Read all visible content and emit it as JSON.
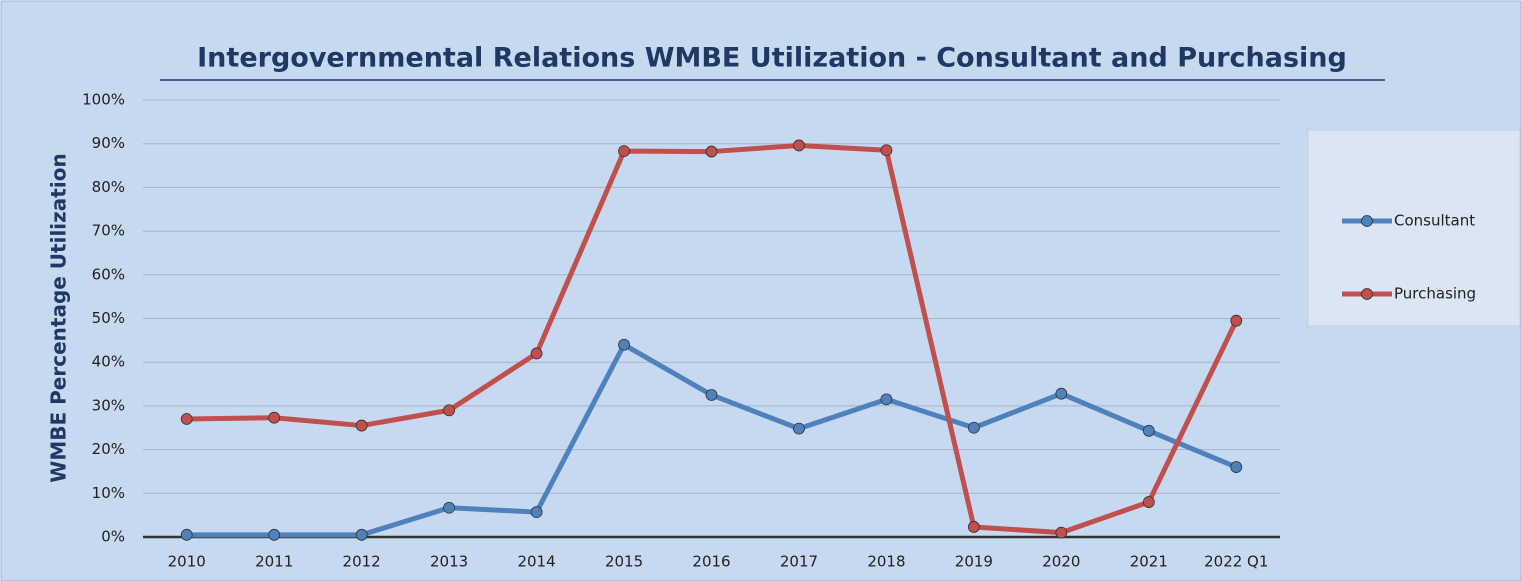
{
  "chart_data": {
    "type": "line",
    "title": "Intergovernmental Relations WMBE Utilization - Consultant and Purchasing",
    "y_label": "WMBE Percentage Utilization",
    "categories": [
      "2010",
      "2011",
      "2012",
      "2013",
      "2014",
      "2015",
      "2016",
      "2017",
      "2018",
      "2019",
      "2020",
      "2021",
      "2022 Q1"
    ],
    "series": [
      {
        "name": "Consultant",
        "color": "#4f81bd",
        "values": [
          0.5,
          0.5,
          0.5,
          6.7,
          5.7,
          44,
          32.5,
          24.8,
          31.5,
          25,
          32.8,
          24.3,
          16
        ]
      },
      {
        "name": "Purchasing",
        "color": "#c0504d",
        "values": [
          27,
          27.3,
          25.5,
          29,
          42,
          88.3,
          88.2,
          89.6,
          88.5,
          2.3,
          1,
          8,
          49.5
        ]
      }
    ],
    "ylim": [
      0,
      100
    ],
    "yticks": [
      {
        "value": 0,
        "label": "0%"
      },
      {
        "value": 10,
        "label": "10%"
      },
      {
        "value": 20,
        "label": "20%"
      },
      {
        "value": 30,
        "label": "30%"
      },
      {
        "value": 40,
        "label": "40%"
      },
      {
        "value": 50,
        "label": "50%"
      },
      {
        "value": 60,
        "label": "60%"
      },
      {
        "value": 70,
        "label": "70%"
      },
      {
        "value": 80,
        "label": "80%"
      },
      {
        "value": 90,
        "label": "90%"
      },
      {
        "value": 100,
        "label": "100%"
      }
    ],
    "grid": true,
    "legend": "right"
  }
}
